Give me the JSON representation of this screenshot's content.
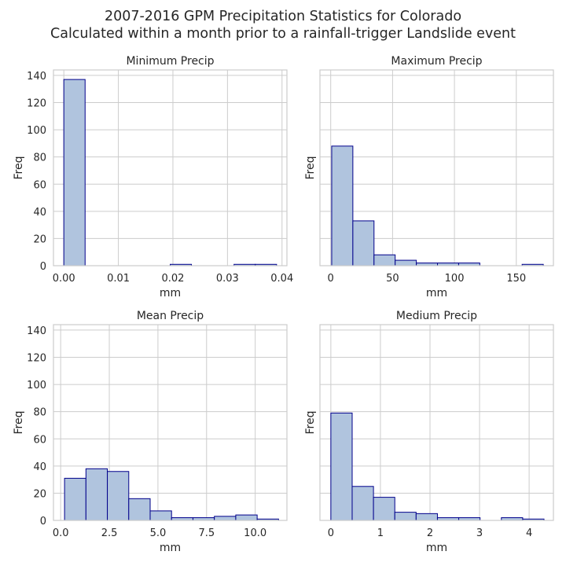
{
  "title": "2007-2016 GPM Precipitation Statistics for Colorado",
  "subtitle": "Calculated within a month prior to a rainfall-trigger Landslide event",
  "colors": {
    "bar_fill": "#b0c4de",
    "bar_edge": "#00008b",
    "grid": "#cccccc",
    "axes": "#cccccc"
  },
  "chart_data": [
    {
      "type": "bar",
      "title": "Minimum Precip",
      "xlabel": "mm",
      "ylabel": "Freq",
      "xlim": [
        -0.0019,
        0.0409
      ],
      "ylim": [
        0,
        144
      ],
      "xticks": [
        0.0,
        0.01,
        0.02,
        0.03,
        0.04
      ],
      "xtick_labels": [
        "0.00",
        "0.01",
        "0.02",
        "0.03",
        "0.04"
      ],
      "yticks": [
        0,
        20,
        40,
        60,
        80,
        100,
        120,
        140
      ],
      "ytick_labels": [
        "0",
        "20",
        "40",
        "60",
        "80",
        "100",
        "120",
        "140"
      ],
      "bin_edges": [
        0.0,
        0.0039,
        0.0078,
        0.0117,
        0.0156,
        0.0195,
        0.0234,
        0.0273,
        0.0312,
        0.0351,
        0.039
      ],
      "values": [
        137,
        0,
        0,
        0,
        0,
        1,
        0,
        0,
        1,
        1
      ]
    },
    {
      "type": "bar",
      "title": "Maximum Precip",
      "xlabel": "mm",
      "ylabel": "Freq",
      "xlim": [
        -8.7,
        180
      ],
      "ylim": [
        0,
        144
      ],
      "xticks": [
        0,
        50,
        100,
        150
      ],
      "xtick_labels": [
        "0",
        "50",
        "100",
        "150"
      ],
      "yticks": [
        0,
        20,
        40,
        60,
        80,
        100,
        120,
        140
      ],
      "ytick_labels": [],
      "bin_edges": [
        0.8,
        17.9,
        35.0,
        52.1,
        69.2,
        86.3,
        103.4,
        120.5,
        137.6,
        154.7,
        171.8
      ],
      "values": [
        88,
        33,
        8,
        4,
        2,
        2,
        2,
        0,
        0,
        1
      ]
    },
    {
      "type": "bar",
      "title": "Mean Precip",
      "xlabel": "mm",
      "ylabel": "Freq",
      "xlim": [
        -0.37,
        11.63
      ],
      "ylim": [
        0,
        144
      ],
      "xticks": [
        0.0,
        2.5,
        5.0,
        7.5,
        10.0
      ],
      "xtick_labels": [
        "0.0",
        "2.5",
        "5.0",
        "7.5",
        "10.0"
      ],
      "yticks": [
        0,
        20,
        40,
        60,
        80,
        100,
        120,
        140
      ],
      "ytick_labels": [
        "0",
        "20",
        "40",
        "60",
        "80",
        "100",
        "120",
        "140"
      ],
      "bin_edges": [
        0.2,
        1.3,
        2.4,
        3.5,
        4.6,
        5.7,
        6.8,
        7.9,
        9.0,
        10.1,
        11.2
      ],
      "values": [
        31,
        38,
        36,
        16,
        7,
        2,
        2,
        3,
        4,
        1
      ]
    },
    {
      "type": "bar",
      "title": "Medium Precip",
      "xlabel": "mm",
      "ylabel": "Freq",
      "xlim": [
        -0.22,
        4.49
      ],
      "ylim": [
        0,
        144
      ],
      "xticks": [
        0,
        1,
        2,
        3,
        4
      ],
      "xtick_labels": [
        "0",
        "1",
        "2",
        "3",
        "4"
      ],
      "yticks": [
        0,
        20,
        40,
        60,
        80,
        100,
        120,
        140
      ],
      "ytick_labels": [],
      "bin_edges": [
        0.0,
        0.43,
        0.86,
        1.29,
        1.72,
        2.15,
        2.58,
        3.01,
        3.44,
        3.87,
        4.3
      ],
      "values": [
        79,
        25,
        17,
        6,
        5,
        2,
        2,
        0,
        2,
        1
      ]
    }
  ]
}
